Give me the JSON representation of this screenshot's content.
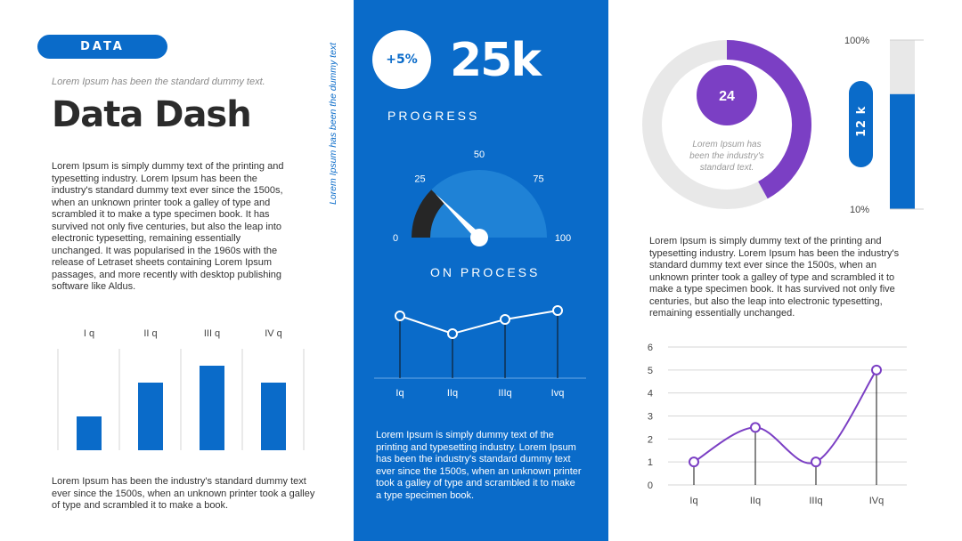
{
  "left": {
    "badge": "DATA",
    "subtitle": "Lorem Ipsum has been the standard dummy text.",
    "title": "Data Dash",
    "paragraph": "Lorem Ipsum is simply dummy text of the printing and typesetting industry. Lorem Ipsum has been the industry's standard dummy text ever since the 1500s, when an unknown printer took a galley of type and scrambled it to make a type specimen book. It has survived not only five centuries, but also the leap into electronic typesetting, remaining essentially unchanged. It was popularised in the 1960s with the release of Letraset sheets containing Lorem Ipsum passages, and more recently with desktop publishing software like Aldus.",
    "footer": "Lorem Ipsum has been the industry's standard dummy text ever since the 1500s, when an unknown printer took a galley of type and scrambled it to make a book.",
    "vertical_text": "Lorem Ipsum has been the dummy text"
  },
  "middle": {
    "delta": "+5%",
    "big_number": "25k",
    "progress_label": "PROGRESS",
    "on_process_label": "ON PROCESS",
    "paragraph": "Lorem Ipsum is simply dummy text of the printing and typesetting industry. Lorem Ipsum has been the industry's standard dummy text ever since the 1500s, when an unknown printer took a galley of type and scrambled it to make a type specimen book."
  },
  "right": {
    "donut_value": "24",
    "donut_caption": "Lorem Ipsum has been the industry's standard text.",
    "vbar_label": "12 k",
    "paragraph": "Lorem Ipsum is simply dummy text of the printing and typesetting industry. Lorem Ipsum has been the industry's standard dummy text ever since the 1500s, when an unknown printer took a galley of type and scrambled it to make a type specimen book. It has survived not only five centuries, but also the leap into electronic typesetting, remaining essentially unchanged."
  },
  "colors": {
    "blue": "#0a6bc9",
    "purple": "#7b3fc4",
    "light_gray": "#e8e8e8",
    "dark": "#2b2b2b"
  },
  "chart_data": [
    {
      "type": "bar",
      "categories": [
        "I q",
        "II q",
        "III q",
        "IV q"
      ],
      "values": [
        2,
        4,
        5,
        4
      ],
      "ylim": [
        0,
        6
      ]
    },
    {
      "type": "gauge",
      "ticks": [
        "0",
        "25",
        "50",
        "75",
        "100"
      ],
      "value": 25,
      "range": [
        0,
        100
      ]
    },
    {
      "type": "line",
      "categories": [
        "Iq",
        "IIq",
        "IIIq",
        "Ivq"
      ],
      "values": [
        3.5,
        2.5,
        3.3,
        3.8
      ],
      "ylim": [
        0,
        5
      ]
    },
    {
      "type": "pie",
      "value": 24,
      "fraction": 0.42
    },
    {
      "type": "bar",
      "ticks": [
        "100%",
        "10%"
      ],
      "value": 0.68,
      "label": "12 k"
    },
    {
      "type": "line",
      "categories": [
        "Iq",
        "IIq",
        "IIIq",
        "IVq"
      ],
      "values": [
        1,
        2.5,
        1,
        5
      ],
      "ylim": [
        0,
        6
      ],
      "yticks": [
        "0",
        "1",
        "2",
        "3",
        "4",
        "5",
        "6"
      ]
    }
  ]
}
